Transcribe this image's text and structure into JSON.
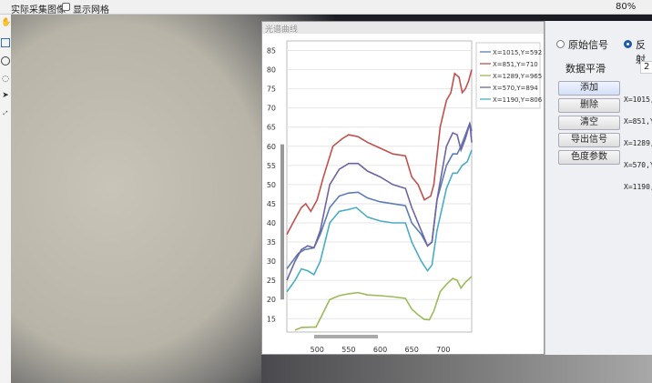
{
  "topbar": {
    "image_label": "实际采集图像",
    "grid_checkbox": "显示网格",
    "zoom": "80%"
  },
  "toolbar": {
    "icons": [
      "hand-icon",
      "rectangle-icon",
      "ellipse-icon",
      "lasso-icon",
      "pointer-icon",
      "fit-icon"
    ]
  },
  "window": {
    "title": "光谱曲线"
  },
  "panel": {
    "radio_raw": "原始信号",
    "radio_reflect": "反射",
    "smooth_label": "数据平滑",
    "smooth_value": "2",
    "buttons": [
      "添加",
      "删除",
      "清空",
      "导出信号",
      "色度参数"
    ],
    "points": [
      "X=1015,",
      "X=851,Y",
      "X=1289,",
      "X=570,Y",
      "X=1190,"
    ]
  },
  "chart_data": {
    "type": "line",
    "xlim": [
      452,
      745
    ],
    "ylim": [
      11.5,
      87.5
    ],
    "xticks": [
      500,
      550,
      600,
      650,
      700
    ],
    "yticks": [
      15,
      20,
      25,
      30,
      35,
      40,
      45,
      50,
      55,
      60,
      65,
      70,
      75,
      80,
      85
    ],
    "grid": true,
    "legend": "right",
    "series": [
      {
        "name": "X=1015,Y=592",
        "color": "#5b7db4",
        "x": [
          452,
          470,
          480,
          495,
          505,
          520,
          535,
          550,
          565,
          580,
          600,
          620,
          640,
          650,
          665,
          675,
          682,
          690,
          705,
          715,
          722,
          728,
          735,
          742,
          745
        ],
        "y": [
          28,
          32,
          33,
          33.5,
          37,
          44,
          47,
          47.8,
          48,
          46.5,
          45.5,
          45,
          44.5,
          40,
          37,
          34,
          35,
          46,
          55,
          58,
          58,
          60,
          63,
          66,
          64
        ]
      },
      {
        "name": "X=851,Y=710",
        "color": "#c0504d",
        "x": [
          452,
          465,
          475,
          482,
          490,
          500,
          510,
          525,
          540,
          550,
          565,
          580,
          600,
          620,
          640,
          650,
          660,
          670,
          680,
          685,
          695,
          705,
          712,
          718,
          725,
          730,
          735,
          740,
          745
        ],
        "y": [
          37,
          41,
          44,
          45,
          43,
          46,
          52,
          60,
          62,
          63,
          62.5,
          61,
          59.5,
          58,
          57.5,
          52,
          50,
          46,
          47,
          50,
          65,
          72,
          74,
          79,
          78,
          74,
          75,
          77,
          80
        ]
      },
      {
        "name": "X=1289,Y=965",
        "color": "#9bbb59",
        "x": [
          465,
          475,
          490,
          498,
          505,
          520,
          535,
          550,
          565,
          580,
          600,
          620,
          640,
          650,
          660,
          670,
          678,
          685,
          695,
          705,
          715,
          722,
          728,
          735,
          745
        ],
        "y": [
          12,
          12.7,
          12.8,
          12.8,
          15,
          20,
          21,
          21.5,
          21.8,
          21.2,
          21,
          20.7,
          20.3,
          17.5,
          16,
          14.8,
          14.7,
          17,
          22,
          24,
          25.5,
          25,
          23,
          24.5,
          26
        ]
      },
      {
        "name": "X=570,Y=894",
        "color": "#6e64a4",
        "x": [
          452,
          465,
          475,
          485,
          495,
          505,
          520,
          535,
          550,
          565,
          580,
          600,
          620,
          640,
          650,
          665,
          675,
          682,
          690,
          705,
          715,
          722,
          728,
          735,
          742,
          745
        ],
        "y": [
          25,
          30,
          33,
          34,
          33.5,
          38,
          50,
          54,
          55.5,
          55.5,
          53.5,
          52,
          50,
          49,
          44,
          38,
          34,
          35,
          46,
          60,
          63.5,
          63,
          59,
          62,
          66,
          61
        ]
      },
      {
        "name": "X=1190,Y=806",
        "color": "#4bacc6",
        "x": [
          452,
          465,
          475,
          485,
          495,
          505,
          520,
          535,
          550,
          562,
          580,
          600,
          620,
          640,
          650,
          665,
          675,
          682,
          690,
          705,
          715,
          722,
          730,
          738,
          745
        ],
        "y": [
          22,
          25,
          28,
          27.5,
          26.5,
          30,
          40,
          43,
          43.5,
          44,
          41.5,
          40.5,
          40,
          40,
          35,
          30,
          27.5,
          29,
          38,
          49,
          53,
          53,
          55,
          56,
          59
        ]
      }
    ]
  }
}
